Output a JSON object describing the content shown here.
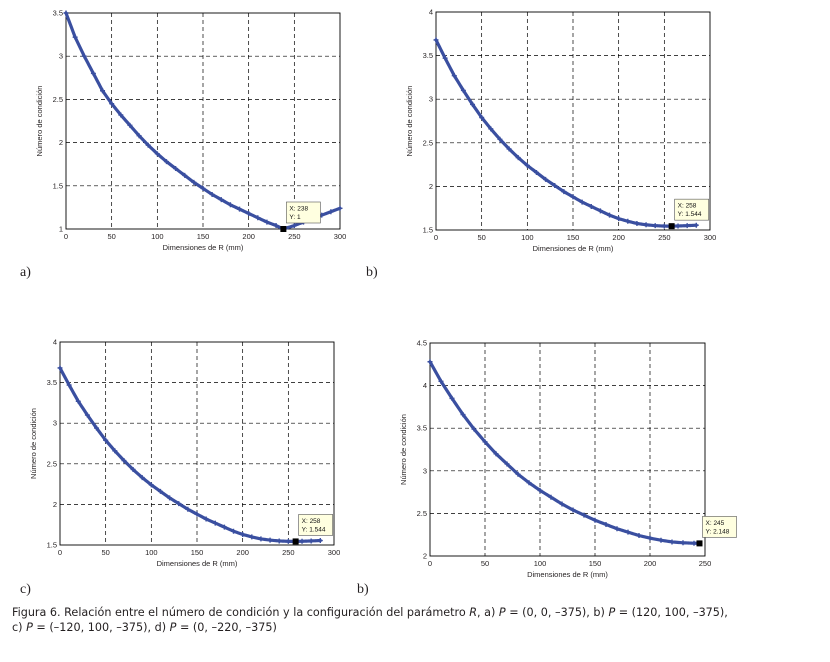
{
  "chart_data": [
    {
      "type": "scatter",
      "panel": "a)",
      "xlabel": "Dimensiones de R (mm)",
      "ylabel": "Número de condición",
      "xlim": [
        0,
        300
      ],
      "ylim": [
        1,
        3.5
      ],
      "xticks": [
        "0",
        "50",
        "100",
        "150",
        "200",
        "250",
        "300"
      ],
      "yticks": [
        "1",
        "1.5",
        "2",
        "2.5",
        "3",
        "3.5"
      ],
      "grid": true,
      "series": [
        {
          "name": "condition number",
          "x": [
            0,
            10,
            20,
            30,
            40,
            50,
            60,
            70,
            80,
            90,
            100,
            110,
            120,
            130,
            140,
            150,
            160,
            170,
            180,
            190,
            200,
            210,
            220,
            230,
            238,
            250,
            260,
            270,
            280,
            290,
            300
          ],
          "y": [
            3.5,
            3.22,
            3.0,
            2.8,
            2.6,
            2.45,
            2.32,
            2.2,
            2.08,
            1.97,
            1.87,
            1.78,
            1.7,
            1.62,
            1.54,
            1.47,
            1.4,
            1.34,
            1.28,
            1.23,
            1.18,
            1.13,
            1.08,
            1.04,
            1.0,
            1.04,
            1.08,
            1.12,
            1.16,
            1.2,
            1.24
          ]
        }
      ],
      "datatip": {
        "x_text": "X: 238",
        "y_text": "Y: 1",
        "x": 238,
        "y": 1
      }
    },
    {
      "type": "scatter",
      "panel": "b)",
      "xlabel": "Dimensiones de R (mm)",
      "ylabel": "Número de condición",
      "xlim": [
        0,
        300
      ],
      "ylim": [
        1.5,
        4
      ],
      "xticks": [
        "0",
        "50",
        "100",
        "150",
        "200",
        "250",
        "300"
      ],
      "yticks": [
        "1.5",
        "2",
        "2.5",
        "3",
        "3.5",
        "4"
      ],
      "grid": true,
      "series": [
        {
          "name": "condition number",
          "x": [
            0,
            10,
            20,
            30,
            40,
            50,
            60,
            70,
            80,
            90,
            100,
            110,
            120,
            130,
            140,
            150,
            160,
            170,
            180,
            190,
            200,
            210,
            220,
            230,
            240,
            250,
            258,
            265,
            275,
            285
          ],
          "y": [
            3.68,
            3.47,
            3.27,
            3.1,
            2.94,
            2.79,
            2.66,
            2.54,
            2.43,
            2.33,
            2.24,
            2.16,
            2.08,
            2.01,
            1.94,
            1.88,
            1.82,
            1.77,
            1.72,
            1.67,
            1.63,
            1.6,
            1.575,
            1.56,
            1.55,
            1.545,
            1.544,
            1.546,
            1.55,
            1.555
          ]
        }
      ],
      "datatip": {
        "x_text": "X: 258",
        "y_text": "Y: 1.544",
        "x": 258,
        "y": 1.544
      }
    },
    {
      "type": "scatter",
      "panel": "c)",
      "xlabel": "Dimensiones de R (mm)",
      "ylabel": "Número de condición",
      "xlim": [
        0,
        300
      ],
      "ylim": [
        1.5,
        4
      ],
      "xticks": [
        "0",
        "50",
        "100",
        "150",
        "200",
        "250",
        "300"
      ],
      "yticks": [
        "1.5",
        "2",
        "2.5",
        "3",
        "3.5",
        "4"
      ],
      "grid": true,
      "series": [
        {
          "name": "condition number",
          "x": [
            0,
            10,
            20,
            30,
            40,
            50,
            60,
            70,
            80,
            90,
            100,
            110,
            120,
            130,
            140,
            150,
            160,
            170,
            180,
            190,
            200,
            210,
            220,
            230,
            240,
            250,
            258,
            265,
            275,
            285
          ],
          "y": [
            3.68,
            3.47,
            3.27,
            3.1,
            2.94,
            2.79,
            2.66,
            2.54,
            2.43,
            2.33,
            2.24,
            2.16,
            2.08,
            2.01,
            1.94,
            1.88,
            1.82,
            1.77,
            1.72,
            1.67,
            1.63,
            1.6,
            1.575,
            1.56,
            1.55,
            1.545,
            1.544,
            1.546,
            1.55,
            1.555
          ]
        }
      ],
      "datatip": {
        "x_text": "X: 258",
        "y_text": "Y: 1.544",
        "x": 258,
        "y": 1.544
      }
    },
    {
      "type": "scatter",
      "panel": "b)",
      "xlabel": "Dimensiones de R (mm)",
      "ylabel": "Número de condición",
      "xlim": [
        0,
        250
      ],
      "ylim": [
        2,
        4.5
      ],
      "xticks": [
        "0",
        "50",
        "100",
        "150",
        "200",
        "250"
      ],
      "yticks": [
        "2",
        "2.5",
        "3",
        "3.5",
        "4",
        "4.5"
      ],
      "grid": true,
      "series": [
        {
          "name": "condition number",
          "x": [
            0,
            10,
            20,
            30,
            40,
            50,
            60,
            70,
            80,
            90,
            100,
            110,
            120,
            130,
            140,
            150,
            160,
            170,
            180,
            190,
            200,
            210,
            220,
            230,
            240,
            245
          ],
          "y": [
            4.28,
            4.05,
            3.85,
            3.66,
            3.49,
            3.34,
            3.2,
            3.08,
            2.96,
            2.86,
            2.77,
            2.69,
            2.61,
            2.54,
            2.48,
            2.42,
            2.37,
            2.32,
            2.28,
            2.24,
            2.21,
            2.185,
            2.165,
            2.155,
            2.15,
            2.148
          ]
        }
      ],
      "datatip": {
        "x_text": "X: 245",
        "y_text": "Y: 2.148",
        "x": 245,
        "y": 2.148
      }
    }
  ],
  "caption": {
    "intro": "Figura 6. Relación entre el número de condición y la configuración del parámetro ",
    "param": "R",
    "part_a": ", a) ",
    "P1": "P",
    "val_a": " = (0, 0, –375), b) ",
    "P2": "P",
    "val_b": " = (120, 100, –375),",
    "line2_c": "c) ",
    "P3": "P",
    "val_c": " = (–120, 100, –375), d) ",
    "P4": "P",
    "val_d": " = (0, –220, –375)"
  },
  "colors": {
    "series": "#3a4fa0",
    "grid": "#000000",
    "axis": "#000000",
    "datatip_bg": "#ffffe0"
  }
}
